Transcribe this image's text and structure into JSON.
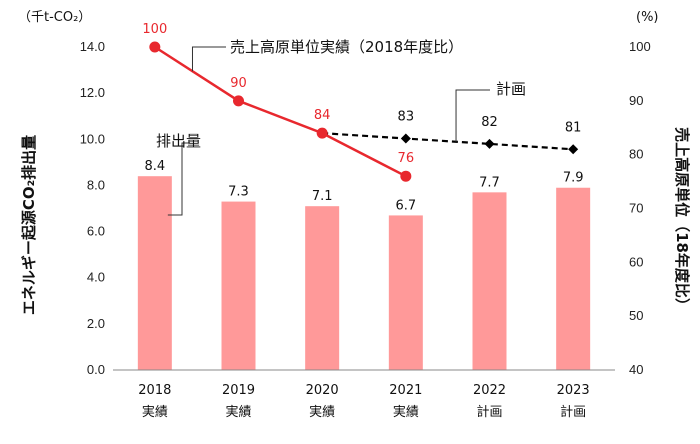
{
  "chart_data": {
    "type": "bar",
    "categories": [
      {
        "year": "2018",
        "kind": "実績"
      },
      {
        "year": "2019",
        "kind": "実績"
      },
      {
        "year": "2020",
        "kind": "実績"
      },
      {
        "year": "2021",
        "kind": "実績"
      },
      {
        "year": "2022",
        "kind": "計画"
      },
      {
        "year": "2023",
        "kind": "計画"
      }
    ],
    "left_axis": {
      "title": "エネルギー起源CO₂排出量",
      "unit": "（千t-CO₂）",
      "range": [
        0,
        14
      ],
      "ticks": [
        "0.0",
        "2.0",
        "4.0",
        "6.0",
        "8.0",
        "10.0",
        "12.0",
        "14.0"
      ]
    },
    "right_axis": {
      "title": "売上高原単位（18年度比）",
      "unit": "(%)",
      "range": [
        40,
        100
      ],
      "ticks": [
        "40",
        "50",
        "60",
        "70",
        "80",
        "90",
        "100"
      ]
    },
    "bars": {
      "name": "排出量",
      "values": [
        8.4,
        7.3,
        7.1,
        6.7,
        7.7,
        7.9
      ],
      "labels": [
        "8.4",
        "7.3",
        "7.1",
        "6.7",
        "7.7",
        "7.9"
      ],
      "color": "#ff9999"
    },
    "actual_line": {
      "name": "売上高原単位実績（2018年度比）",
      "values": [
        100,
        90,
        84,
        76
      ],
      "labels": [
        "100",
        "90",
        "84",
        "76"
      ],
      "color": "#e8282e"
    },
    "plan_line": {
      "name": "計画",
      "values": [
        null,
        null,
        84,
        83,
        82,
        81
      ],
      "labels": [
        "",
        "",
        "",
        "83",
        "82",
        "81"
      ],
      "color": "#000000",
      "style": "dashed"
    }
  }
}
